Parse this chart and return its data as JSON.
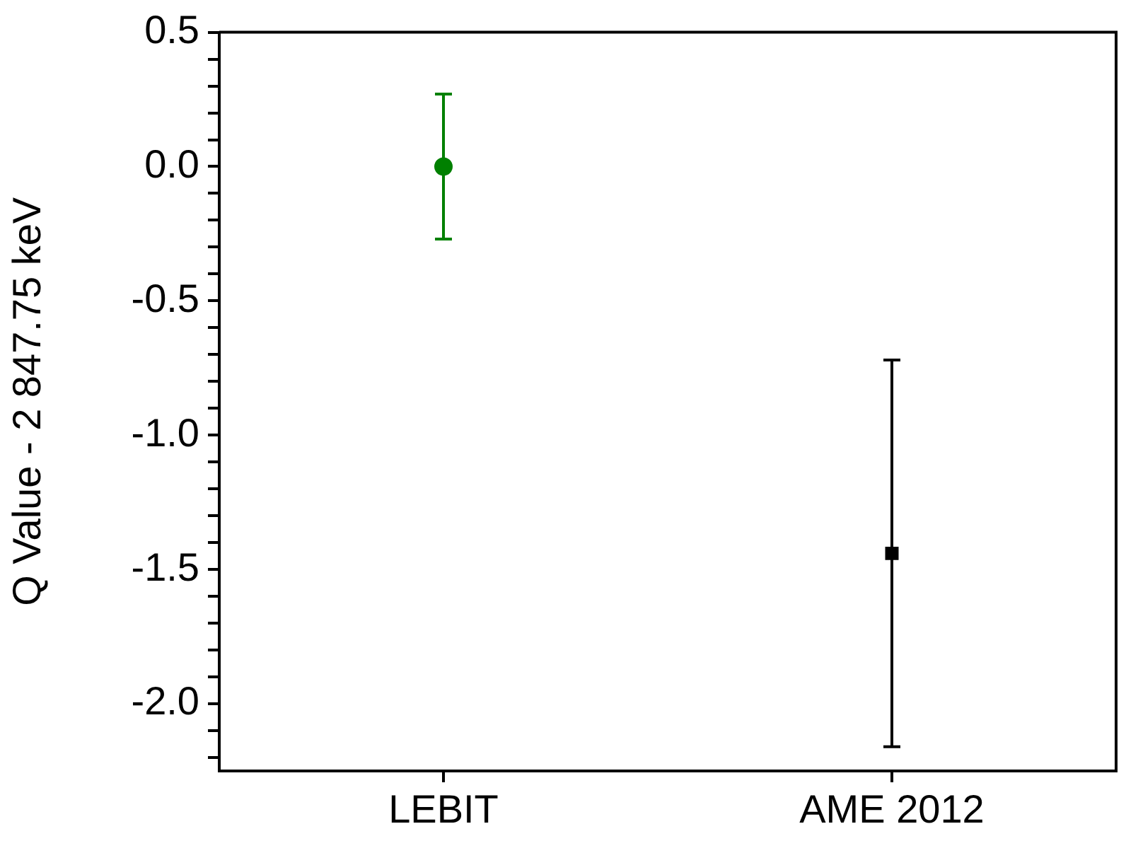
{
  "chart_data": {
    "type": "scatter",
    "ylabel": "Q Value - 2 847.75 keV",
    "categories": [
      "LEBIT",
      "AME 2012"
    ],
    "series": [
      {
        "x": [
          "LEBIT"
        ],
        "values": [
          0
        ],
        "errors": [
          0.27
        ],
        "color": "#008000",
        "marker": "circle"
      },
      {
        "x": [
          "AME 2012"
        ],
        "values": [
          -1.44
        ],
        "errors": [
          0.72
        ],
        "color": "#000000",
        "marker": "square"
      }
    ],
    "ylim": [
      -2.25,
      0.5
    ],
    "yticks": [
      {
        "value": -2.2,
        "label": null
      },
      {
        "value": -2.1,
        "label": null
      },
      {
        "value": -2.0,
        "label": "-2.0"
      },
      {
        "value": -1.9,
        "label": null
      },
      {
        "value": -1.8,
        "label": null
      },
      {
        "value": -1.7,
        "label": null
      },
      {
        "value": -1.6,
        "label": null
      },
      {
        "value": -1.5,
        "label": "-1.5"
      },
      {
        "value": -1.4,
        "label": null
      },
      {
        "value": -1.3,
        "label": null
      },
      {
        "value": -1.2,
        "label": null
      },
      {
        "value": -1.1,
        "label": null
      },
      {
        "value": -1.0,
        "label": "-1.0"
      },
      {
        "value": -0.9,
        "label": null
      },
      {
        "value": -0.8,
        "label": null
      },
      {
        "value": -0.7,
        "label": null
      },
      {
        "value": -0.6,
        "label": null
      },
      {
        "value": -0.5,
        "label": "-0.5"
      },
      {
        "value": -0.4,
        "label": null
      },
      {
        "value": -0.3,
        "label": null
      },
      {
        "value": -0.2,
        "label": null
      },
      {
        "value": -0.1,
        "label": null
      },
      {
        "value": 0,
        "label": "0.0"
      },
      {
        "value": 0.1,
        "label": null
      },
      {
        "value": 0.2,
        "label": null
      },
      {
        "value": 0.3,
        "label": null
      },
      {
        "value": 0.4,
        "label": null
      },
      {
        "value": 0.5,
        "label": "0.5"
      }
    ],
    "grid": false,
    "legend": false
  }
}
